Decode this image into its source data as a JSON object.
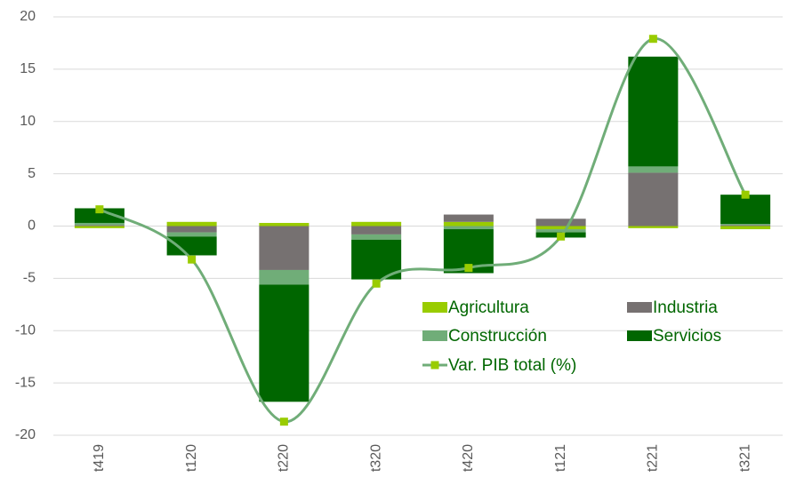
{
  "chart_data": {
    "type": "bar",
    "stacked": true,
    "categories": [
      "t419",
      "t120",
      "t220",
      "t320",
      "t420",
      "t121",
      "t221",
      "t321"
    ],
    "series": [
      {
        "name": "Agricultura",
        "color": "#99cc00",
        "values": [
          -0.2,
          0.4,
          0.3,
          0.4,
          0.4,
          -0.3,
          -0.2,
          -0.3
        ]
      },
      {
        "name": "Industria",
        "color": "#767171",
        "values": [
          0.1,
          -0.6,
          -4.2,
          -0.8,
          0.7,
          0.7,
          5.1,
          0.1
        ]
      },
      {
        "name": "Construcción",
        "color": "#70ad78",
        "values": [
          0.2,
          -0.4,
          -1.4,
          -0.5,
          -0.3,
          -0.3,
          0.6,
          0.1
        ]
      },
      {
        "name": "Servicios",
        "color": "#006600",
        "values": [
          1.4,
          -1.8,
          -11.2,
          -3.8,
          -4.2,
          -0.5,
          10.5,
          2.8
        ]
      },
      {
        "name": "Var. PIB total (%)",
        "type": "line",
        "color": "#70ad78",
        "marker_color": "#99cc00",
        "values": [
          1.6,
          -3.2,
          -18.7,
          -5.5,
          -4.0,
          -1.0,
          17.9,
          3.0
        ]
      }
    ],
    "ylim": [
      -20,
      20
    ],
    "yticks": [
      -20,
      -15,
      -10,
      -5,
      0,
      5,
      10,
      15,
      20
    ],
    "grid": true
  }
}
